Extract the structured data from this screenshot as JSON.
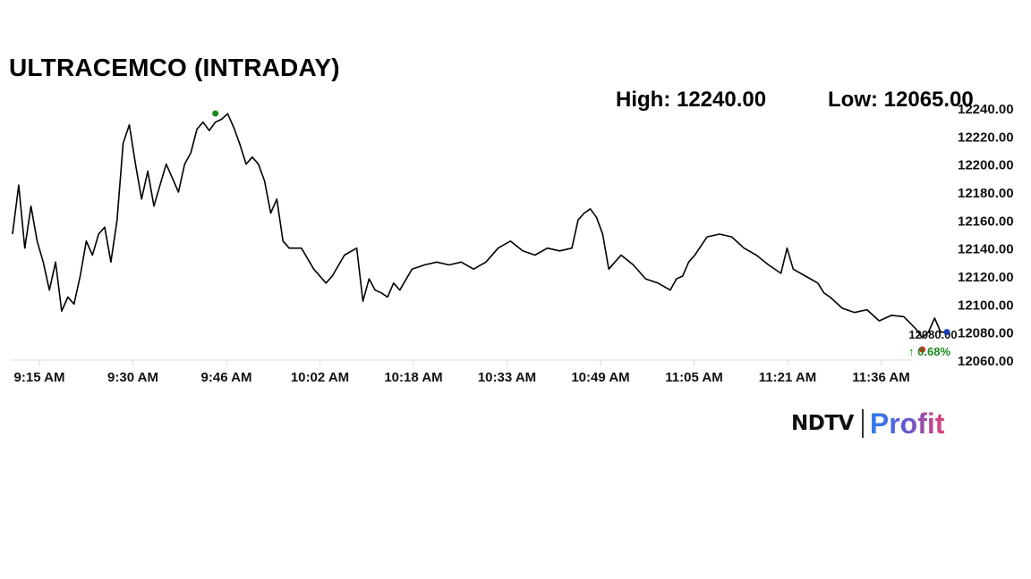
{
  "header": {
    "title": "ULTRACEMCO (INTRADAY)",
    "high_text": "High: 12240.00",
    "low_text": "Low: 12065.00"
  },
  "logo": {
    "brand": "NDTV",
    "product": "Profit"
  },
  "chart_data": {
    "type": "line",
    "title": "ULTRACEMCO (INTRADAY)",
    "ylim": [
      12060,
      12240
    ],
    "y_ticks": [
      "12240.00",
      "12220.00",
      "12200.00",
      "12180.00",
      "12160.00",
      "12140.00",
      "12120.00",
      "12100.00",
      "12080.00",
      "12060.00"
    ],
    "x_range": [
      "9:15 AM",
      "11:47 AM"
    ],
    "x_ticks": [
      "9:15 AM",
      "9:30 AM",
      "9:46 AM",
      "10:02 AM",
      "10:18 AM",
      "10:33 AM",
      "10:49 AM",
      "11:05 AM",
      "11:21 AM",
      "11:36 AM"
    ],
    "grid": false,
    "line_color": "#000000",
    "series": [
      {
        "x": [
          "9:15 AM",
          "9:16 AM",
          "9:17 AM",
          "9:18 AM",
          "9:19 AM",
          "9:20 AM",
          "9:21 AM",
          "9:22 AM",
          "9:23 AM",
          "9:24 AM",
          "9:25 AM",
          "9:26 AM",
          "9:27 AM",
          "9:28 AM",
          "9:29 AM",
          "9:30 AM",
          "9:31 AM",
          "9:32 AM",
          "9:33 AM",
          "9:34 AM",
          "9:35 AM",
          "9:36 AM",
          "9:37 AM",
          "9:38 AM",
          "9:39 AM",
          "9:40 AM",
          "9:41 AM",
          "9:42 AM",
          "9:43 AM",
          "9:44 AM",
          "9:45 AM",
          "9:46 AM",
          "9:47 AM",
          "9:48 AM",
          "9:49 AM",
          "9:50 AM",
          "9:51 AM",
          "9:52 AM",
          "9:53 AM",
          "9:54 AM",
          "9:55 AM",
          "9:56 AM",
          "9:57 AM",
          "9:58 AM",
          "9:59 AM",
          "10:00 AM",
          "10:02 AM",
          "10:04 AM",
          "10:06 AM",
          "10:07 AM",
          "10:09 AM",
          "10:11 AM",
          "10:12 AM",
          "10:13 AM",
          "10:14 AM",
          "10:15 AM",
          "10:16 AM",
          "10:17 AM",
          "10:18 AM",
          "10:20 AM",
          "10:22 AM",
          "10:24 AM",
          "10:26 AM",
          "10:28 AM",
          "10:30 AM",
          "10:32 AM",
          "10:34 AM",
          "10:36 AM",
          "10:38 AM",
          "10:40 AM",
          "10:42 AM",
          "10:44 AM",
          "10:46 AM",
          "10:47 AM",
          "10:48 AM",
          "10:49 AM",
          "10:50 AM",
          "10:51 AM",
          "10:52 AM",
          "10:53 AM",
          "10:54 AM",
          "10:56 AM",
          "10:58 AM",
          "11:00 AM",
          "11:02 AM",
          "11:03 AM",
          "11:04 AM",
          "11:05 AM",
          "11:06 AM",
          "11:08 AM",
          "11:10 AM",
          "11:12 AM",
          "11:14 AM",
          "11:16 AM",
          "11:18 AM",
          "11:20 AM",
          "11:21 AM",
          "11:22 AM",
          "11:24 AM",
          "11:26 AM",
          "11:27 AM",
          "11:28 AM",
          "11:30 AM",
          "11:32 AM",
          "11:34 AM",
          "11:36 AM",
          "11:38 AM",
          "11:40 AM",
          "11:42 AM",
          "11:43 AM",
          "11:44 AM",
          "11:45 AM",
          "11:46 AM",
          "11:47 AM"
        ],
        "values": [
          12150,
          12185,
          12140,
          12170,
          12145,
          12130,
          12110,
          12130,
          12095,
          12105,
          12100,
          12120,
          12145,
          12135,
          12150,
          12155,
          12130,
          12160,
          12215,
          12228,
          12200,
          12175,
          12195,
          12170,
          12185,
          12200,
          12190,
          12180,
          12200,
          12208,
          12225,
          12230,
          12224,
          12230,
          12232,
          12236,
          12226,
          12214,
          12200,
          12205,
          12200,
          12188,
          12165,
          12175,
          12145,
          12140,
          12140,
          12125,
          12115,
          12120,
          12135,
          12140,
          12102,
          12118,
          12110,
          12108,
          12105,
          12115,
          12110,
          12125,
          12128,
          12130,
          12128,
          12130,
          12125,
          12130,
          12140,
          12145,
          12138,
          12135,
          12140,
          12138,
          12140,
          12160,
          12165,
          12168,
          12162,
          12150,
          12125,
          12130,
          12135,
          12128,
          12118,
          12115,
          12110,
          12118,
          12120,
          12130,
          12135,
          12148,
          12150,
          12148,
          12140,
          12135,
          12128,
          12122,
          12140,
          12125,
          12120,
          12115,
          12108,
          12105,
          12097,
          12094,
          12096,
          12088,
          12092,
          12091,
          12082,
          12076,
          12080,
          12090,
          12080,
          12080
        ]
      }
    ],
    "markers": {
      "high": {
        "x": "9:48 AM",
        "y": 12240.0,
        "color": "#1a8a1a"
      },
      "low": {
        "x": "11:43 AM",
        "y": 12065.0,
        "color": "#e02020"
      },
      "last": {
        "x": "11:47 AM",
        "y": 12080.0,
        "color": "#1a3fb0"
      }
    },
    "last_price_label": "12080.00",
    "change_label": "0.68%",
    "change_color": "#1a8a1a",
    "change_arrow": "↑"
  }
}
